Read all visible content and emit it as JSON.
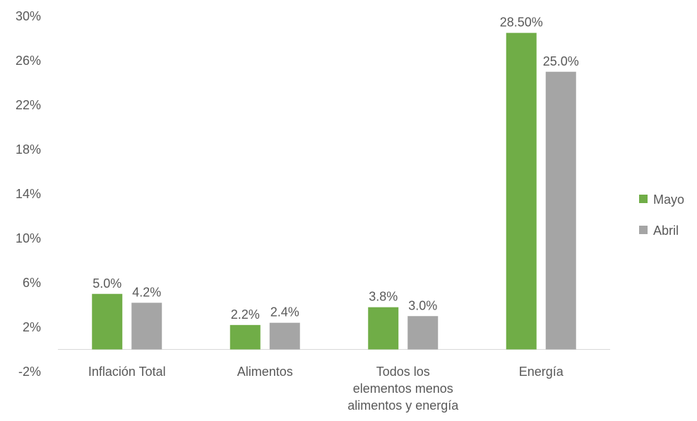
{
  "chart_data": {
    "type": "bar",
    "categories": [
      [
        "Inflación Total"
      ],
      [
        "Alimentos"
      ],
      [
        "Todos los",
        "elementos menos",
        "alimentos y energía"
      ],
      [
        "Energía"
      ]
    ],
    "series": [
      {
        "name": "Mayo",
        "color": "#70ad47",
        "values": [
          5.0,
          2.2,
          3.8,
          28.5
        ],
        "labels": [
          "5.0%",
          "2.2%",
          "3.8%",
          "28.50%"
        ]
      },
      {
        "name": "Abril",
        "color": "#a5a5a5",
        "values": [
          4.2,
          2.4,
          3.0,
          25.0
        ],
        "labels": [
          "4.2%",
          "2.4%",
          "3.0%",
          "25.0%"
        ]
      }
    ],
    "yticks": [
      "30%",
      "26%",
      "22%",
      "18%",
      "14%",
      "10%",
      "6%",
      "2%",
      "-2%"
    ],
    "ylim": [
      -2,
      30
    ],
    "grid": false,
    "legend_position": "right"
  }
}
